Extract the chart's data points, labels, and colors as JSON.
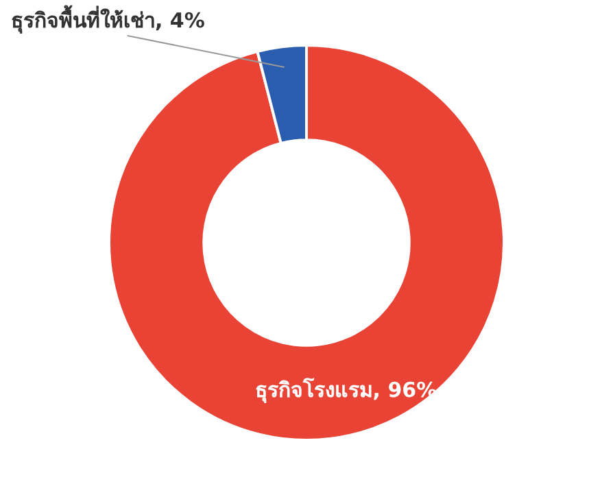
{
  "chart_data": {
    "type": "donut",
    "categories": [
      "ธุรกิจโรงแรม",
      "ธุรกิจพื้นที่ให้เช่า"
    ],
    "values": [
      96,
      4
    ],
    "colors": [
      "#e94335",
      "#2a5db0"
    ],
    "value_labels": [
      "96%",
      "4%"
    ],
    "legend": false
  }
}
